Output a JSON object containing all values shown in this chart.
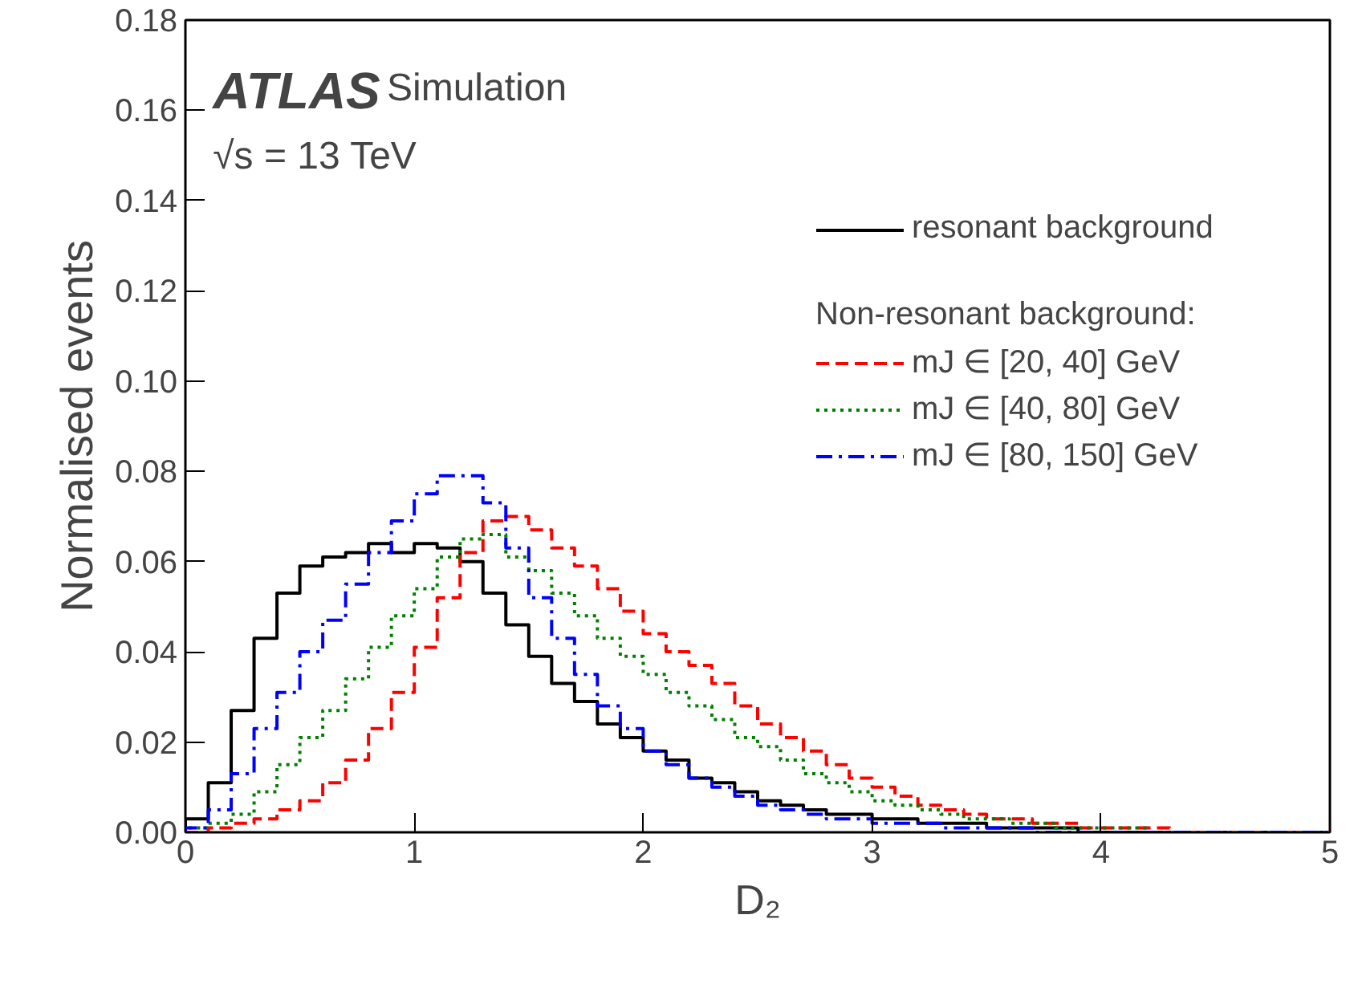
{
  "chart_data": {
    "type": "histogram",
    "xlabel": "D₂",
    "ylabel": "Normalised events",
    "legend_title": "Non-resonant background:",
    "annotations": [
      "ATLAS",
      "Simulation",
      "√s = 13 TeV"
    ],
    "bins": [
      0,
      0.1,
      0.2,
      0.3,
      0.4,
      0.5,
      0.6,
      0.7,
      0.8,
      0.9,
      1.0,
      1.1,
      1.2,
      1.3,
      1.4,
      1.5,
      1.6,
      1.7,
      1.8,
      1.9,
      2.0,
      2.1,
      2.2,
      2.3,
      2.4,
      2.5,
      2.6,
      2.7,
      2.8,
      2.9,
      3.0,
      3.1,
      3.2,
      3.3,
      3.4,
      3.5,
      3.6,
      3.7,
      3.8,
      3.9,
      4.0,
      4.1,
      4.2,
      4.3,
      4.4,
      4.5,
      4.6,
      4.7,
      4.8,
      4.9,
      5.0
    ],
    "series": [
      {
        "name": "resonant background",
        "color": "#000000",
        "line_style": "solid",
        "values": [
          0.003,
          0.011,
          0.027,
          0.043,
          0.053,
          0.059,
          0.061,
          0.062,
          0.064,
          0.062,
          0.064,
          0.063,
          0.06,
          0.053,
          0.046,
          0.039,
          0.033,
          0.029,
          0.024,
          0.021,
          0.018,
          0.016,
          0.012,
          0.011,
          0.009,
          0.007,
          0.006,
          0.005,
          0.004,
          0.004,
          0.003,
          0.003,
          0.002,
          0.002,
          0.002,
          0.001,
          0.001,
          0.001,
          0.001,
          0,
          0,
          0,
          0,
          0,
          0,
          0,
          0,
          0,
          0,
          0
        ]
      },
      {
        "name": "mJ ∈ [20, 40] GeV",
        "color": "#ff0000",
        "line_style": "dashed",
        "values": [
          0,
          0.001,
          0.002,
          0.003,
          0.005,
          0.007,
          0.011,
          0.016,
          0.023,
          0.031,
          0.041,
          0.052,
          0.062,
          0.069,
          0.07,
          0.067,
          0.063,
          0.059,
          0.054,
          0.049,
          0.044,
          0.04,
          0.037,
          0.033,
          0.028,
          0.024,
          0.021,
          0.018,
          0.015,
          0.012,
          0.01,
          0.008,
          0.006,
          0.005,
          0.004,
          0.003,
          0.003,
          0.002,
          0.002,
          0.001,
          0.001,
          0.001,
          0.001,
          0,
          0,
          0,
          0,
          0,
          0,
          0
        ]
      },
      {
        "name": "mJ ∈ [40, 80] GeV",
        "color": "#008000",
        "line_style": "dotted",
        "values": [
          0.001,
          0.002,
          0.004,
          0.009,
          0.015,
          0.021,
          0.027,
          0.034,
          0.041,
          0.048,
          0.054,
          0.061,
          0.065,
          0.066,
          0.061,
          0.058,
          0.053,
          0.048,
          0.043,
          0.039,
          0.035,
          0.031,
          0.028,
          0.025,
          0.021,
          0.019,
          0.016,
          0.013,
          0.011,
          0.009,
          0.007,
          0.006,
          0.005,
          0.004,
          0.003,
          0.003,
          0.002,
          0.002,
          0.001,
          0.001,
          0.001,
          0.001,
          0,
          0,
          0,
          0,
          0,
          0,
          0,
          0
        ]
      },
      {
        "name": "mJ ∈ [80, 150] GeV",
        "color": "#0000ff",
        "line_style": "dashdot",
        "values": [
          0.001,
          0.005,
          0.013,
          0.023,
          0.031,
          0.04,
          0.047,
          0.055,
          0.062,
          0.069,
          0.075,
          0.079,
          0.079,
          0.073,
          0.063,
          0.052,
          0.043,
          0.035,
          0.028,
          0.023,
          0.018,
          0.015,
          0.012,
          0.01,
          0.008,
          0.006,
          0.005,
          0.004,
          0.003,
          0.003,
          0.002,
          0.002,
          0.002,
          0.001,
          0.001,
          0.001,
          0.001,
          0,
          0,
          0,
          0,
          0,
          0,
          0,
          0,
          0,
          0,
          0,
          0,
          0
        ]
      }
    ],
    "xlim": [
      0,
      5
    ],
    "xticks": [
      0,
      1,
      2,
      3,
      4,
      5
    ],
    "ylim": [
      0,
      0.18
    ],
    "yticks": [
      {
        "value": 0,
        "label": "0.00"
      },
      {
        "value": 0.02,
        "label": "0.02"
      },
      {
        "value": 0.04,
        "label": "0.04"
      },
      {
        "value": 0.06,
        "label": "0.06"
      },
      {
        "value": 0.08,
        "label": "0.08"
      },
      {
        "value": 0.1,
        "label": "0.10"
      },
      {
        "value": 0.12,
        "label": "0.12"
      },
      {
        "value": 0.14,
        "label": "0.14"
      },
      {
        "value": 0.16,
        "label": "0.16"
      },
      {
        "value": 0.18,
        "label": "0.18"
      }
    ],
    "grid": false,
    "legend": "top right"
  }
}
